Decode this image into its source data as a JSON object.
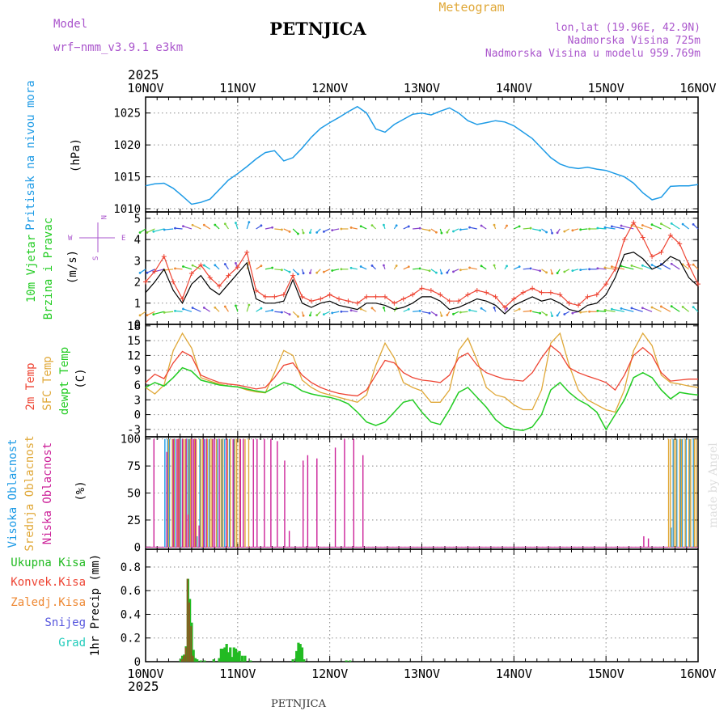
{
  "header": {
    "model_label": "Model",
    "model_name": "wrf−nmm_v3.9.1  e3km",
    "station": "PETNJICA",
    "chart_kind": "Meteogram",
    "lonlat": "lon,lat (19.96E, 42.9N)",
    "altitude": "Nadmorska Visina 725m",
    "model_altitude": "Nadmorska Visina u modelu 959.769m",
    "footer_station": "PETNJICA",
    "credit": "made by Angel"
  },
  "x_axis": {
    "year": "2025",
    "date_labels": [
      "10NOV",
      "11NOV",
      "12NOV",
      "13NOV",
      "14NOV",
      "15NOV",
      "16NOV"
    ]
  },
  "colors": {
    "pressure": "#1e9be6",
    "temp2m": "#ee4433",
    "sfc_temp": "#e0a838",
    "dewpoint": "#22cc22",
    "high_cloud": "#1e9be6",
    "mid_cloud": "#e0a838",
    "low_cloud": "#cc2299",
    "total_precip": "#22bb22",
    "conv_precip": "#ee4433",
    "frozen_precip": "#ee8833",
    "snow": "#5555dd",
    "hail": "#22ccbb",
    "dir_label": "#aa55cc"
  },
  "chart_data": [
    {
      "type": "line",
      "panel": "pressure",
      "ylabel": "Pritisak na nivou mora",
      "unit": "(hPa)",
      "ylim": [
        1009.5,
        1027.5
      ],
      "yticks": [
        1010,
        1015,
        1020,
        1025
      ],
      "x_days": [
        0,
        0.1,
        0.2,
        0.3,
        0.4,
        0.5,
        0.6,
        0.7,
        0.8,
        0.9,
        1.0,
        1.1,
        1.2,
        1.3,
        1.4,
        1.5,
        1.6,
        1.7,
        1.8,
        1.9,
        2.0,
        2.1,
        2.2,
        2.3,
        2.4,
        2.5,
        2.6,
        2.7,
        2.8,
        2.9,
        3.0,
        3.1,
        3.2,
        3.3,
        3.4,
        3.5,
        3.6,
        3.7,
        3.8,
        3.9,
        4.0,
        4.1,
        4.2,
        4.3,
        4.4,
        4.5,
        4.6,
        4.7,
        4.8,
        4.9,
        5.0,
        5.1,
        5.2,
        5.3,
        5.4,
        5.5,
        5.6,
        5.7,
        5.8,
        5.9,
        6.0
      ],
      "series": [
        {
          "name": "Pritisak",
          "values": [
            1013.6,
            1013.9,
            1014.0,
            1013.2,
            1012.0,
            1010.7,
            1011.0,
            1011.5,
            1013.0,
            1014.5,
            1015.5,
            1016.6,
            1017.8,
            1018.8,
            1019.1,
            1017.5,
            1018.0,
            1019.5,
            1021.2,
            1022.6,
            1023.5,
            1024.3,
            1025.2,
            1026.0,
            1025.0,
            1022.5,
            1022.0,
            1023.2,
            1024.0,
            1024.8,
            1025.0,
            1024.7,
            1025.3,
            1025.8,
            1025.0,
            1023.8,
            1023.2,
            1023.5,
            1023.8,
            1023.6,
            1023.0,
            1022.0,
            1021.0,
            1019.5,
            1018.0,
            1017.0,
            1016.5,
            1016.3,
            1016.5,
            1016.2,
            1016.0,
            1015.5,
            1015.0,
            1014.0,
            1012.5,
            1011.4,
            1011.8,
            1013.5,
            1013.6,
            1013.6,
            1013.8
          ]
        }
      ]
    },
    {
      "type": "line",
      "panel": "wind",
      "ylabel": "10m Vjetar Brzina i Pravac",
      "unit": "(m/s)",
      "direction_legend": [
        "N",
        "W",
        "E",
        "S"
      ],
      "ylim": [
        0,
        5.3
      ],
      "yticks": [
        0,
        1,
        2,
        3,
        4,
        5
      ],
      "x_days": [
        0,
        0.1,
        0.2,
        0.3,
        0.4,
        0.5,
        0.6,
        0.7,
        0.8,
        0.9,
        1.0,
        1.1,
        1.2,
        1.3,
        1.4,
        1.5,
        1.6,
        1.7,
        1.8,
        1.9,
        2.0,
        2.1,
        2.2,
        2.3,
        2.4,
        2.5,
        2.6,
        2.7,
        2.8,
        2.9,
        3.0,
        3.1,
        3.2,
        3.3,
        3.4,
        3.5,
        3.6,
        3.7,
        3.8,
        3.9,
        4.0,
        4.1,
        4.2,
        4.3,
        4.4,
        4.5,
        4.6,
        4.7,
        4.8,
        4.9,
        5.0,
        5.1,
        5.2,
        5.3,
        5.4,
        5.5,
        5.6,
        5.7,
        5.8,
        5.9,
        6.0
      ],
      "series": [
        {
          "name": "Brzina (mean)",
          "values": [
            1.5,
            2.0,
            2.6,
            1.6,
            1.0,
            1.9,
            2.3,
            1.7,
            1.4,
            1.9,
            2.4,
            2.9,
            1.2,
            1.0,
            1.0,
            1.1,
            2.1,
            1.0,
            0.8,
            1.0,
            1.1,
            0.9,
            0.8,
            0.7,
            1.0,
            1.0,
            0.9,
            0.7,
            0.8,
            1.0,
            1.3,
            1.3,
            1.1,
            0.7,
            0.8,
            1.0,
            1.2,
            1.1,
            0.9,
            0.5,
            0.9,
            1.1,
            1.3,
            1.1,
            1.2,
            1.0,
            0.7,
            0.6,
            0.9,
            1.0,
            1.4,
            2.2,
            3.3,
            3.4,
            3.1,
            2.6,
            2.8,
            3.2,
            3.0,
            2.2,
            1.8
          ]
        },
        {
          "name": "Udari (gust)",
          "values": [
            2.0,
            2.5,
            3.2,
            2.0,
            1.2,
            2.4,
            2.8,
            2.2,
            1.8,
            2.3,
            2.7,
            3.4,
            1.6,
            1.3,
            1.3,
            1.4,
            2.3,
            1.3,
            1.1,
            1.2,
            1.4,
            1.2,
            1.1,
            1.0,
            1.3,
            1.3,
            1.3,
            1.0,
            1.2,
            1.4,
            1.7,
            1.6,
            1.4,
            1.1,
            1.1,
            1.4,
            1.6,
            1.5,
            1.3,
            0.8,
            1.2,
            1.5,
            1.7,
            1.5,
            1.5,
            1.4,
            1.0,
            0.9,
            1.3,
            1.4,
            1.9,
            2.6,
            4.0,
            4.8,
            4.1,
            3.2,
            3.4,
            4.2,
            3.8,
            2.8,
            1.9
          ]
        }
      ],
      "vector_rows_y": [
        4.5,
        2.6,
        0.6
      ],
      "vector_directions": [
        220,
        230,
        245,
        260,
        280,
        300,
        310,
        320,
        330,
        340,
        350,
        10,
        40,
        70,
        100,
        130,
        150,
        170,
        190,
        210,
        230,
        250,
        270,
        290,
        310,
        330,
        350,
        20,
        50,
        80,
        110,
        140,
        170,
        200,
        230,
        260,
        290,
        320,
        350,
        20,
        50,
        80,
        110,
        140,
        170,
        200,
        225,
        245,
        260,
        270,
        280,
        285,
        290,
        295,
        300,
        305,
        310,
        315,
        320,
        325,
        330
      ]
    },
    {
      "type": "line",
      "panel": "temperature",
      "ylabel": [
        "2m Temp",
        "SFC Temp",
        "dewpt Temp"
      ],
      "unit": "(C)",
      "ylim": [
        -4.5,
        18.3
      ],
      "yticks": [
        -3,
        0,
        3,
        6,
        9,
        12,
        15,
        18
      ],
      "x_days": [
        0,
        0.1,
        0.2,
        0.3,
        0.4,
        0.5,
        0.6,
        0.7,
        0.8,
        0.9,
        1.0,
        1.1,
        1.2,
        1.3,
        1.4,
        1.5,
        1.6,
        1.7,
        1.8,
        1.9,
        2.0,
        2.1,
        2.2,
        2.3,
        2.4,
        2.5,
        2.6,
        2.7,
        2.8,
        2.9,
        3.0,
        3.1,
        3.2,
        3.3,
        3.4,
        3.5,
        3.6,
        3.7,
        3.8,
        3.9,
        4.0,
        4.1,
        4.2,
        4.3,
        4.4,
        4.5,
        4.6,
        4.7,
        4.8,
        4.9,
        5.0,
        5.1,
        5.2,
        5.3,
        5.4,
        5.5,
        5.6,
        5.7,
        5.8,
        5.9,
        6.0
      ],
      "series": [
        {
          "name": "2m Temp",
          "values": [
            6.5,
            8.2,
            7.3,
            10.5,
            12.8,
            11.8,
            8.0,
            7.2,
            6.5,
            6.2,
            6.0,
            5.6,
            5.2,
            5.5,
            7.5,
            10.0,
            10.5,
            8.0,
            6.5,
            5.5,
            4.8,
            4.3,
            4.0,
            3.8,
            5.0,
            8.0,
            11.0,
            10.5,
            8.5,
            7.5,
            7.0,
            6.8,
            6.5,
            8.0,
            11.5,
            12.5,
            10.0,
            8.5,
            7.8,
            7.2,
            7.0,
            6.8,
            8.5,
            11.5,
            14.0,
            12.5,
            9.5,
            8.5,
            7.8,
            7.2,
            6.5,
            5.0,
            8.0,
            12.0,
            13.6,
            12.0,
            8.5,
            6.8,
            7.0,
            7.2,
            7.2
          ]
        },
        {
          "name": "SFC Temp",
          "values": [
            5.5,
            4.2,
            6.0,
            13.0,
            16.5,
            13.5,
            7.5,
            6.8,
            6.2,
            5.8,
            5.6,
            5.0,
            4.6,
            4.4,
            8.5,
            13.0,
            12.0,
            7.0,
            5.5,
            4.5,
            4.0,
            3.5,
            3.0,
            2.5,
            4.0,
            10.0,
            14.5,
            11.5,
            6.5,
            5.5,
            4.8,
            2.5,
            2.5,
            5.0,
            13.0,
            15.5,
            11.0,
            5.5,
            4.0,
            3.5,
            2.0,
            1.0,
            1.0,
            5.0,
            14.5,
            16.5,
            10.0,
            5.0,
            3.0,
            2.0,
            1.0,
            0.5,
            5.0,
            13.0,
            16.5,
            14.0,
            8.0,
            6.5,
            6.2,
            5.8,
            5.5
          ]
        },
        {
          "name": "dewpt Temp",
          "values": [
            5.5,
            6.5,
            5.8,
            7.5,
            9.5,
            8.8,
            7.0,
            6.5,
            6.0,
            5.8,
            5.6,
            5.2,
            4.8,
            4.5,
            5.5,
            6.5,
            6.0,
            4.8,
            4.2,
            3.8,
            3.5,
            3.0,
            2.2,
            0.5,
            -1.5,
            -2.2,
            -1.5,
            0.5,
            2.5,
            3.0,
            0.5,
            -1.5,
            -2.0,
            1.0,
            4.5,
            5.5,
            3.5,
            1.5,
            -1.0,
            -2.5,
            -3.0,
            -3.2,
            -2.5,
            0.0,
            5.0,
            6.5,
            4.5,
            3.0,
            2.0,
            0.5,
            -3.0,
            0.0,
            3.0,
            7.5,
            8.5,
            7.5,
            5.0,
            3.2,
            4.5,
            4.2,
            4.0
          ]
        }
      ]
    },
    {
      "type": "bar",
      "panel": "cloud",
      "ylabel": [
        "Visoka Oblacnost",
        "Srednja Oblacnost",
        "Niska Oblacnost"
      ],
      "unit": "(%)",
      "ylim": [
        -2,
        102
      ],
      "yticks": [
        0,
        25,
        50,
        75,
        100
      ],
      "x_days": [
        0.08,
        0.22,
        0.25,
        0.27,
        0.29,
        0.31,
        0.33,
        0.35,
        0.37,
        0.39,
        0.41,
        0.43,
        0.45,
        0.47,
        0.49,
        0.51,
        0.53,
        0.55,
        0.57,
        0.6,
        0.62,
        0.65,
        0.67,
        0.7,
        0.72,
        0.74,
        0.77,
        0.79,
        0.82,
        0.84,
        0.87,
        0.89,
        0.92,
        0.94,
        0.97,
        0.99,
        1.02,
        1.05,
        1.08,
        1.12,
        1.16,
        1.2,
        1.24,
        1.28,
        1.35,
        1.42,
        1.5,
        1.55,
        1.7,
        1.75,
        1.85,
        1.92,
        2.0,
        2.05,
        2.15,
        2.2,
        2.25,
        2.35,
        5.4,
        5.45,
        5.68,
        5.7,
        5.72,
        5.74,
        5.76,
        5.78,
        5.8,
        5.82,
        5.84,
        5.86,
        5.88,
        5.9,
        5.92,
        5.94,
        5.96,
        5.98
      ],
      "series": [
        {
          "name": "Visoka Oblacnost",
          "values": [
            0,
            100,
            100,
            100,
            0,
            100,
            100,
            0,
            100,
            100,
            100,
            0,
            100,
            100,
            100,
            100,
            0,
            40,
            10,
            100,
            0,
            100,
            0,
            100,
            0,
            100,
            0,
            100,
            0,
            100,
            100,
            0,
            100,
            0,
            100,
            0,
            0,
            0,
            0,
            0,
            0,
            0,
            0,
            0,
            0,
            0,
            0,
            0,
            0,
            0,
            0,
            0,
            0,
            0,
            0,
            0,
            0,
            0,
            0,
            0,
            0,
            0,
            18,
            100,
            0,
            100,
            0,
            100,
            100,
            0,
            100,
            0,
            100,
            0,
            100,
            0
          ]
        },
        {
          "name": "Srednja Oblacnost",
          "values": [
            0,
            0,
            100,
            0,
            100,
            100,
            0,
            100,
            100,
            0,
            100,
            100,
            0,
            100,
            100,
            0,
            100,
            100,
            0,
            100,
            100,
            0,
            100,
            100,
            100,
            0,
            100,
            0,
            100,
            100,
            0,
            100,
            100,
            0,
            100,
            100,
            100,
            0,
            100,
            100,
            0,
            0,
            0,
            0,
            0,
            0,
            0,
            0,
            0,
            0,
            0,
            0,
            0,
            0,
            0,
            0,
            0,
            0,
            0,
            0,
            100,
            100,
            0,
            100,
            100,
            0,
            100,
            100,
            0,
            100,
            0,
            100,
            100,
            0,
            100,
            100
          ]
        },
        {
          "name": "Niska Oblacnost",
          "values": [
            100,
            88,
            0,
            0,
            100,
            0,
            100,
            100,
            0,
            100,
            0,
            100,
            30,
            0,
            100,
            100,
            100,
            0,
            20,
            0,
            100,
            100,
            0,
            0,
            100,
            100,
            0,
            100,
            0,
            0,
            100,
            0,
            0,
            100,
            0,
            0,
            100,
            100,
            0,
            0,
            100,
            100,
            0,
            100,
            100,
            98,
            80,
            15,
            80,
            85,
            82,
            0,
            0,
            92,
            100,
            0,
            100,
            85,
            10,
            8,
            0,
            0,
            0,
            0,
            0,
            0,
            0,
            0,
            0,
            0,
            0,
            0,
            0,
            0,
            0,
            0
          ]
        }
      ]
    },
    {
      "type": "bar",
      "panel": "precipitation",
      "ylabel": "1hr Precip (mm)",
      "legend": [
        "Ukupna Kisa",
        "Konvek.Kisa",
        "Zaledj.Kisa",
        "Snijeg",
        "Grad"
      ],
      "ylim": [
        0,
        0.95
      ],
      "yticks": [
        0,
        0.2,
        0.4,
        0.6,
        0.8
      ],
      "x_days": [
        0.38,
        0.4,
        0.42,
        0.44,
        0.46,
        0.48,
        0.5,
        0.52,
        0.54,
        0.56,
        0.6,
        0.64,
        0.74,
        0.8,
        0.82,
        0.84,
        0.86,
        0.88,
        0.9,
        0.92,
        0.94,
        0.96,
        0.98,
        1.0,
        1.02,
        1.05,
        1.08,
        1.14,
        1.6,
        1.64,
        1.66,
        1.68,
        1.7,
        1.72,
        2.18,
        2.22
      ],
      "series": [
        {
          "name": "Ukupna Kisa",
          "values": [
            0.02,
            0.05,
            0.06,
            0.13,
            0.7,
            0.53,
            0.33,
            0.1,
            0.03,
            0.02,
            0.01,
            0.01,
            0.02,
            0.03,
            0.11,
            0.11,
            0.12,
            0.15,
            0.08,
            0.12,
            0.04,
            0.12,
            0.11,
            0.08,
            0.09,
            0.05,
            0.05,
            0.01,
            0.02,
            0.09,
            0.16,
            0.15,
            0.12,
            0.02,
            0.01,
            0.01
          ]
        },
        {
          "name": "Konvek.Kisa",
          "values": [
            0,
            0.02,
            0.05,
            0.12,
            0.7,
            0.5,
            0.3,
            0.05,
            0,
            0,
            0,
            0,
            0,
            0,
            0,
            0,
            0,
            0,
            0,
            0,
            0,
            0,
            0,
            0,
            0,
            0,
            0,
            0,
            0,
            0,
            0,
            0,
            0,
            0,
            0,
            0
          ]
        }
      ]
    }
  ]
}
